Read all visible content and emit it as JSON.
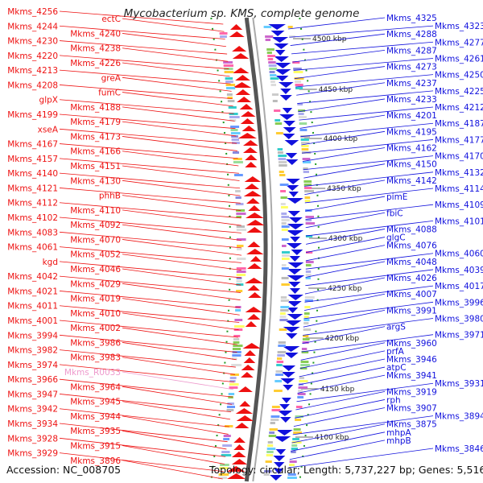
{
  "title": "Mycobacterium sp. KMS, complete genome",
  "footer": {
    "accession": "Accession: NC_008705",
    "summary": "Topology: circular; Length: 5,737,227 bp; Genes: 5,516"
  },
  "colors": {
    "forward": "#ee1111",
    "reverse": "#1111dd",
    "rna": "#ee99cc",
    "backbone": "#888888",
    "ticks": "#229922",
    "feature_palette": [
      "#cccccc",
      "#aaaaee",
      "#66ccff",
      "#ffcc33",
      "#cc66cc",
      "#99dd99",
      "#33cccc",
      "#ff66aa",
      "#8888dd",
      "#88cc55",
      "#bbbbbb",
      "#ffff66",
      "#6699ff",
      "#dddddd"
    ]
  },
  "kbp_ticks": [
    "4500 kbp",
    "4450 kbp",
    "4400 kbp",
    "4350 kbp",
    "4300 kbp",
    "4250 kbp",
    "4200 kbp",
    "4150 kbp",
    "4100 kbp"
  ],
  "left_labels": [
    {
      "t": "Mkms_4256",
      "c": "red"
    },
    {
      "t": "ectC",
      "c": "red"
    },
    {
      "t": "Mkms_4244",
      "c": "red"
    },
    {
      "t": "Mkms_4240",
      "c": "red"
    },
    {
      "t": "Mkms_4230",
      "c": "red"
    },
    {
      "t": "Mkms_4238",
      "c": "red"
    },
    {
      "t": "Mkms_4220",
      "c": "red"
    },
    {
      "t": "Mkms_4226",
      "c": "red"
    },
    {
      "t": "Mkms_4213",
      "c": "red"
    },
    {
      "t": "greA",
      "c": "red"
    },
    {
      "t": "Mkms_4208",
      "c": "red"
    },
    {
      "t": "fumC",
      "c": "red"
    },
    {
      "t": "glpX",
      "c": "red"
    },
    {
      "t": "Mkms_4188",
      "c": "red"
    },
    {
      "t": "Mkms_4199",
      "c": "red"
    },
    {
      "t": "Mkms_4179",
      "c": "red"
    },
    {
      "t": "xseA",
      "c": "red"
    },
    {
      "t": "Mkms_4173",
      "c": "red"
    },
    {
      "t": "Mkms_4167",
      "c": "red"
    },
    {
      "t": "Mkms_4166",
      "c": "red"
    },
    {
      "t": "Mkms_4157",
      "c": "red"
    },
    {
      "t": "Mkms_4151",
      "c": "red"
    },
    {
      "t": "Mkms_4140",
      "c": "red"
    },
    {
      "t": "Mkms_4130",
      "c": "red"
    },
    {
      "t": "Mkms_4121",
      "c": "red"
    },
    {
      "t": "phhB",
      "c": "red"
    },
    {
      "t": "Mkms_4112",
      "c": "red"
    },
    {
      "t": "Mkms_4110",
      "c": "red"
    },
    {
      "t": "Mkms_4102",
      "c": "red"
    },
    {
      "t": "Mkms_4092",
      "c": "red"
    },
    {
      "t": "Mkms_4083",
      "c": "red"
    },
    {
      "t": "Mkms_4070",
      "c": "red"
    },
    {
      "t": "Mkms_4061",
      "c": "red"
    },
    {
      "t": "Mkms_4052",
      "c": "red"
    },
    {
      "t": "kgd",
      "c": "red"
    },
    {
      "t": "Mkms_4046",
      "c": "red"
    },
    {
      "t": "Mkms_4042",
      "c": "red"
    },
    {
      "t": "Mkms_4029",
      "c": "red"
    },
    {
      "t": "Mkms_4021",
      "c": "red"
    },
    {
      "t": "Mkms_4019",
      "c": "red"
    },
    {
      "t": "Mkms_4011",
      "c": "red"
    },
    {
      "t": "Mkms_4010",
      "c": "red"
    },
    {
      "t": "Mkms_4001",
      "c": "red"
    },
    {
      "t": "Mkms_4002",
      "c": "red"
    },
    {
      "t": "Mkms_3994",
      "c": "red"
    },
    {
      "t": "Mkms_3986",
      "c": "red"
    },
    {
      "t": "Mkms_3982",
      "c": "red"
    },
    {
      "t": "Mkms_3983",
      "c": "red"
    },
    {
      "t": "Mkms_3974",
      "c": "red"
    },
    {
      "t": "Mkms_R0033",
      "c": "rna"
    },
    {
      "t": "Mkms_3966",
      "c": "red"
    },
    {
      "t": "Mkms_3964",
      "c": "red"
    },
    {
      "t": "Mkms_3947",
      "c": "red"
    },
    {
      "t": "Mkms_3945",
      "c": "red"
    },
    {
      "t": "Mkms_3942",
      "c": "red"
    },
    {
      "t": "Mkms_3944",
      "c": "red"
    },
    {
      "t": "Mkms_3934",
      "c": "red"
    },
    {
      "t": "Mkms_3935",
      "c": "red"
    },
    {
      "t": "Mkms_3928",
      "c": "red"
    },
    {
      "t": "Mkms_3915",
      "c": "red"
    },
    {
      "t": "Mkms_3929",
      "c": "red"
    },
    {
      "t": "Mkms_3896",
      "c": "red"
    }
  ],
  "right_labels": [
    {
      "t": "Mkms_4325",
      "c": "blue"
    },
    {
      "t": "Mkms_4323",
      "c": "blue"
    },
    {
      "t": "Mkms_4288",
      "c": "blue"
    },
    {
      "t": "Mkms_4277",
      "c": "blue"
    },
    {
      "t": "Mkms_4287",
      "c": "blue"
    },
    {
      "t": "Mkms_4261",
      "c": "blue"
    },
    {
      "t": "Mkms_4273",
      "c": "blue"
    },
    {
      "t": "Mkms_4250",
      "c": "blue"
    },
    {
      "t": "Mkms_4237",
      "c": "blue"
    },
    {
      "t": "Mkms_4225",
      "c": "blue"
    },
    {
      "t": "Mkms_4233",
      "c": "blue"
    },
    {
      "t": "Mkms_4212",
      "c": "blue"
    },
    {
      "t": "Mkms_4201",
      "c": "blue"
    },
    {
      "t": "Mkms_4187",
      "c": "blue"
    },
    {
      "t": "Mkms_4195",
      "c": "blue"
    },
    {
      "t": "Mkms_4177",
      "c": "blue"
    },
    {
      "t": "Mkms_4162",
      "c": "blue"
    },
    {
      "t": "Mkms_4170",
      "c": "blue"
    },
    {
      "t": "Mkms_4150",
      "c": "blue"
    },
    {
      "t": "Mkms_4132",
      "c": "blue"
    },
    {
      "t": "Mkms_4142",
      "c": "blue"
    },
    {
      "t": "Mkms_4114",
      "c": "blue"
    },
    {
      "t": "pimE",
      "c": "blue"
    },
    {
      "t": "Mkms_4109",
      "c": "blue"
    },
    {
      "t": "fbiC",
      "c": "blue"
    },
    {
      "t": "Mkms_4101",
      "c": "blue"
    },
    {
      "t": "Mkms_4088",
      "c": "blue"
    },
    {
      "t": "glgC",
      "c": "blue"
    },
    {
      "t": "Mkms_4076",
      "c": "blue"
    },
    {
      "t": "Mkms_4060",
      "c": "blue"
    },
    {
      "t": "Mkms_4048",
      "c": "blue"
    },
    {
      "t": "Mkms_4039",
      "c": "blue"
    },
    {
      "t": "Mkms_4026",
      "c": "blue"
    },
    {
      "t": "Mkms_4017",
      "c": "blue"
    },
    {
      "t": "Mkms_4007",
      "c": "blue"
    },
    {
      "t": "Mkms_3996",
      "c": "blue"
    },
    {
      "t": "Mkms_3991",
      "c": "blue"
    },
    {
      "t": "Mkms_3980",
      "c": "blue"
    },
    {
      "t": "argS",
      "c": "blue"
    },
    {
      "t": "Mkms_3971",
      "c": "blue"
    },
    {
      "t": "Mkms_3960",
      "c": "blue"
    },
    {
      "t": "prfA",
      "c": "blue"
    },
    {
      "t": "Mkms_3946",
      "c": "blue"
    },
    {
      "t": "atpC",
      "c": "blue"
    },
    {
      "t": "Mkms_3941",
      "c": "blue"
    },
    {
      "t": "Mkms_3931",
      "c": "blue"
    },
    {
      "t": "Mkms_3919",
      "c": "blue"
    },
    {
      "t": "rph",
      "c": "blue"
    },
    {
      "t": "Mkms_3907",
      "c": "blue"
    },
    {
      "t": "Mkms_3894",
      "c": "blue"
    },
    {
      "t": "Mkms_3875",
      "c": "blue"
    },
    {
      "t": "mhpA",
      "c": "blue"
    },
    {
      "t": "mhpB",
      "c": "blue"
    },
    {
      "t": "Mkms_3846",
      "c": "blue"
    }
  ]
}
